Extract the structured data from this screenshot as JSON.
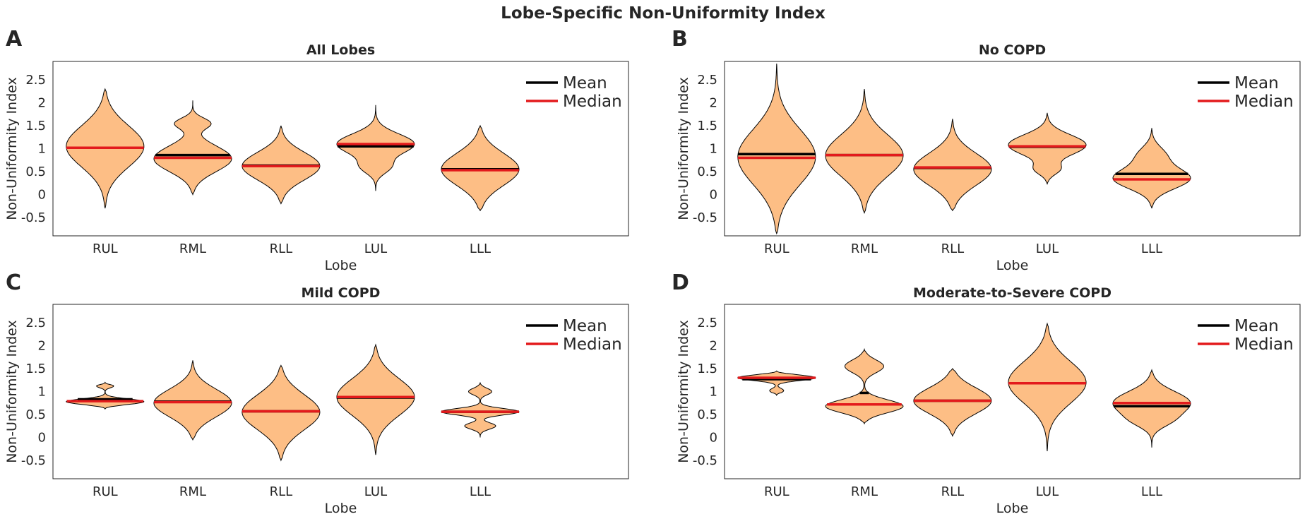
{
  "figure_title": "Lobe-Specific Non-Uniformity Index",
  "colors": {
    "violin_fill": "#fdbe85",
    "outline": "#000000",
    "mean": "#000000",
    "median": "#e31a1c"
  },
  "chart_data": [
    {
      "type": "violin",
      "panel_letter": "A",
      "title": "All Lobes",
      "xlabel": "Lobe",
      "ylabel": "Non-Uniformity Index",
      "ylim": [
        -0.9,
        2.9
      ],
      "yticks": [
        -0.5,
        0,
        0.5,
        1,
        1.5,
        2,
        2.5
      ],
      "ytick_labels": [
        "-0.5",
        "0",
        "0.5",
        "1",
        "1.5",
        "2",
        "2.5"
      ],
      "categories": [
        "RUL",
        "RML",
        "RLL",
        "LUL",
        "LLL"
      ],
      "legend": {
        "position": "top-right",
        "entries": [
          "Mean",
          "Median"
        ]
      },
      "series": [
        {
          "name": "RUL",
          "mean": 1.02,
          "median": 1.02,
          "y_min": -0.3,
          "y_max": 2.3,
          "modes": [
            {
              "c": 1.05,
              "s": 0.45,
              "w": 1.0
            }
          ]
        },
        {
          "name": "RML",
          "mean": 0.86,
          "median": 0.8,
          "y_min": 0.0,
          "y_max": 2.05,
          "modes": [
            {
              "c": 0.78,
              "s": 0.28,
              "w": 1.0
            },
            {
              "c": 1.55,
              "s": 0.12,
              "w": 0.45
            }
          ]
        },
        {
          "name": "RLL",
          "mean": 0.63,
          "median": 0.62,
          "y_min": -0.2,
          "y_max": 1.5,
          "modes": [
            {
              "c": 0.62,
              "s": 0.3,
              "w": 1.0
            }
          ]
        },
        {
          "name": "LUL",
          "mean": 1.05,
          "median": 1.1,
          "y_min": 0.08,
          "y_max": 1.95,
          "modes": [
            {
              "c": 1.1,
              "s": 0.22,
              "w": 1.0
            },
            {
              "c": 0.6,
              "s": 0.15,
              "w": 0.35
            }
          ]
        },
        {
          "name": "LLL",
          "mean": 0.55,
          "median": 0.53,
          "y_min": -0.35,
          "y_max": 1.5,
          "modes": [
            {
              "c": 0.55,
              "s": 0.35,
              "w": 1.0
            }
          ]
        }
      ]
    },
    {
      "type": "violin",
      "panel_letter": "B",
      "title": "No COPD",
      "xlabel": "Lobe",
      "ylabel": "Non-Uniformity Index",
      "ylim": [
        -0.9,
        2.9
      ],
      "yticks": [
        -0.5,
        0,
        0.5,
        1,
        1.5,
        2,
        2.5
      ],
      "ytick_labels": [
        "-0.5",
        "0",
        "0.5",
        "1",
        "1.5",
        "2",
        "2.5"
      ],
      "categories": [
        "RUL",
        "RML",
        "RLL",
        "LUL",
        "LLL"
      ],
      "legend": {
        "position": "top-right",
        "entries": [
          "Mean",
          "Median"
        ]
      },
      "series": [
        {
          "name": "RUL",
          "mean": 0.88,
          "median": 0.8,
          "y_min": -0.85,
          "y_max": 2.85,
          "modes": [
            {
              "c": 0.82,
              "s": 0.6,
              "w": 1.0
            }
          ]
        },
        {
          "name": "RML",
          "mean": 0.86,
          "median": 0.86,
          "y_min": -0.4,
          "y_max": 2.3,
          "modes": [
            {
              "c": 0.85,
              "s": 0.45,
              "w": 1.0
            }
          ]
        },
        {
          "name": "RLL",
          "mean": 0.58,
          "median": 0.59,
          "y_min": -0.35,
          "y_max": 1.65,
          "modes": [
            {
              "c": 0.55,
              "s": 0.35,
              "w": 1.0
            }
          ]
        },
        {
          "name": "LUL",
          "mean": 1.04,
          "median": 1.05,
          "y_min": 0.22,
          "y_max": 1.78,
          "modes": [
            {
              "c": 1.08,
              "s": 0.22,
              "w": 1.0
            },
            {
              "c": 0.55,
              "s": 0.12,
              "w": 0.3
            }
          ]
        },
        {
          "name": "LLL",
          "mean": 0.45,
          "median": 0.33,
          "y_min": -0.3,
          "y_max": 1.45,
          "modes": [
            {
              "c": 0.35,
              "s": 0.22,
              "w": 1.0
            },
            {
              "c": 0.85,
              "s": 0.2,
              "w": 0.35
            }
          ]
        }
      ]
    },
    {
      "type": "violin",
      "panel_letter": "C",
      "title": "Mild COPD",
      "xlabel": "Lobe",
      "ylabel": "Non-Uniformity Index",
      "ylim": [
        -0.9,
        2.9
      ],
      "yticks": [
        -0.5,
        0,
        0.5,
        1,
        1.5,
        2,
        2.5
      ],
      "ytick_labels": [
        "-0.5",
        "0",
        "0.5",
        "1",
        "1.5",
        "2",
        "2.5"
      ],
      "categories": [
        "RUL",
        "RML",
        "RLL",
        "LUL",
        "LLL"
      ],
      "legend": {
        "position": "top-right",
        "entries": [
          "Mean",
          "Median"
        ]
      },
      "series": [
        {
          "name": "RUL",
          "mean": 0.83,
          "median": 0.79,
          "y_min": 0.62,
          "y_max": 1.2,
          "modes": [
            {
              "c": 0.78,
              "s": 0.06,
              "w": 1.0
            },
            {
              "c": 1.12,
              "s": 0.04,
              "w": 0.22
            }
          ]
        },
        {
          "name": "RML",
          "mean": 0.78,
          "median": 0.77,
          "y_min": -0.05,
          "y_max": 1.68,
          "modes": [
            {
              "c": 0.75,
              "s": 0.3,
              "w": 1.0
            }
          ]
        },
        {
          "name": "RLL",
          "mean": 0.57,
          "median": 0.57,
          "y_min": -0.5,
          "y_max": 1.57,
          "modes": [
            {
              "c": 0.55,
              "s": 0.38,
              "w": 1.0
            }
          ]
        },
        {
          "name": "LUL",
          "mean": 0.87,
          "median": 0.88,
          "y_min": -0.38,
          "y_max": 2.02,
          "modes": [
            {
              "c": 0.88,
              "s": 0.4,
              "w": 1.0
            }
          ]
        },
        {
          "name": "LLL",
          "mean": 0.56,
          "median": 0.56,
          "y_min": 0.0,
          "y_max": 1.2,
          "modes": [
            {
              "c": 0.56,
              "s": 0.07,
              "w": 1.0
            },
            {
              "c": 0.25,
              "s": 0.07,
              "w": 0.4
            },
            {
              "c": 1.0,
              "s": 0.07,
              "w": 0.3
            }
          ]
        }
      ]
    },
    {
      "type": "violin",
      "panel_letter": "D",
      "title": "Moderate-to-Severe COPD",
      "xlabel": "Lobe",
      "ylabel": "Non-Uniformity Index",
      "ylim": [
        -0.9,
        2.9
      ],
      "yticks": [
        -0.5,
        0,
        0.5,
        1,
        1.5,
        2,
        2.5
      ],
      "ytick_labels": [
        "-0.5",
        "0",
        "0.5",
        "1",
        "1.5",
        "2",
        "2.5"
      ],
      "categories": [
        "RUL",
        "RML",
        "RLL",
        "LUL",
        "LLL"
      ],
      "legend": {
        "position": "top-right",
        "entries": [
          "Mean",
          "Median"
        ]
      },
      "series": [
        {
          "name": "RUL",
          "mean": 1.27,
          "median": 1.3,
          "y_min": 0.92,
          "y_max": 1.45,
          "modes": [
            {
              "c": 1.3,
              "s": 0.06,
              "w": 1.0
            },
            {
              "c": 1.02,
              "s": 0.05,
              "w": 0.18
            }
          ]
        },
        {
          "name": "RML",
          "mean": 0.97,
          "median": 0.72,
          "y_min": 0.3,
          "y_max": 1.92,
          "modes": [
            {
              "c": 0.68,
              "s": 0.14,
              "w": 1.0
            },
            {
              "c": 1.55,
              "s": 0.14,
              "w": 0.5
            }
          ]
        },
        {
          "name": "RLL",
          "mean": 0.8,
          "median": 0.8,
          "y_min": 0.03,
          "y_max": 1.5,
          "modes": [
            {
              "c": 0.8,
              "s": 0.28,
              "w": 1.0
            }
          ]
        },
        {
          "name": "LUL",
          "mean": 1.18,
          "median": 1.18,
          "y_min": -0.3,
          "y_max": 2.48,
          "modes": [
            {
              "c": 1.2,
              "s": 0.45,
              "w": 1.0
            }
          ]
        },
        {
          "name": "LLL",
          "mean": 0.68,
          "median": 0.75,
          "y_min": -0.22,
          "y_max": 1.47,
          "modes": [
            {
              "c": 0.75,
              "s": 0.25,
              "w": 1.0
            },
            {
              "c": 0.35,
              "s": 0.15,
              "w": 0.3
            }
          ]
        }
      ]
    }
  ]
}
